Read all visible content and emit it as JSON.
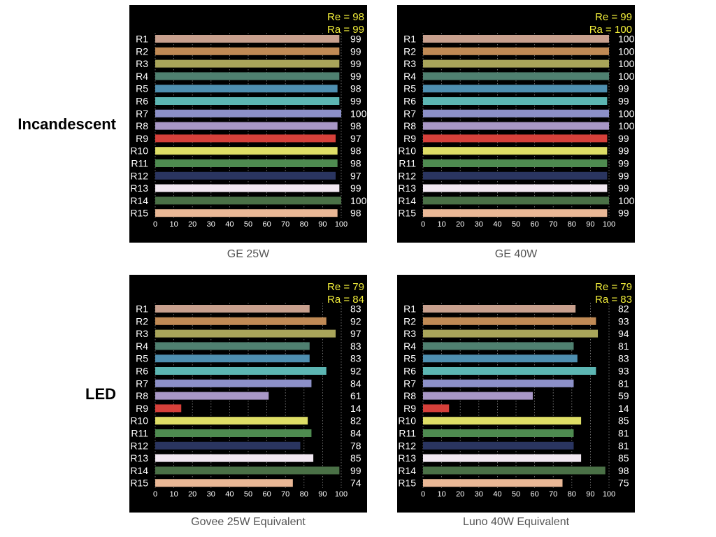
{
  "row_labels": {
    "top": "Incandescent",
    "bottom": "LED"
  },
  "colors": {
    "background": "#000000",
    "grid": "#8a8a8a",
    "label_text": "#ffffff",
    "summary_text": "#f2ee3a",
    "caption_text": "#555555",
    "sample_colors": [
      "#c8a08e",
      "#c08a55",
      "#a9a55a",
      "#4f8070",
      "#4e8fb0",
      "#5cb6b3",
      "#8c90c8",
      "#a897c6",
      "#d6403a",
      "#dede66",
      "#4e8b50",
      "#2a3560",
      "#f2e8f2",
      "#4a7046",
      "#eab896"
    ]
  },
  "chart_data": [
    {
      "type": "bar",
      "orientation": "horizontal",
      "title": "GE 25W",
      "categories": [
        "R1",
        "R2",
        "R3",
        "R4",
        "R5",
        "R6",
        "R7",
        "R8",
        "R9",
        "R10",
        "R11",
        "R12",
        "R13",
        "R14",
        "R15"
      ],
      "values": [
        99,
        99,
        99,
        99,
        98,
        99,
        100,
        98,
        97,
        98,
        98,
        97,
        99,
        100,
        98
      ],
      "value_labels": [
        "99",
        "99",
        "99",
        "99",
        "98",
        "99",
        "100",
        "98",
        "97",
        "98",
        "98",
        "97",
        "99",
        "100",
        "98"
      ],
      "re": "Re = 98",
      "ra": "Ra = 99",
      "xlim": [
        0,
        100
      ],
      "xticks": [
        "0",
        "10",
        "20",
        "30",
        "40",
        "50",
        "60",
        "70",
        "80",
        "90",
        "100"
      ],
      "grid": true
    },
    {
      "type": "bar",
      "orientation": "horizontal",
      "title": "GE 40W",
      "categories": [
        "R1",
        "R2",
        "R3",
        "R4",
        "R5",
        "R6",
        "R7",
        "R8",
        "R9",
        "R10",
        "R11",
        "R12",
        "R13",
        "R14",
        "R15"
      ],
      "values": [
        100,
        100,
        100,
        100,
        99,
        99,
        100,
        100,
        99,
        99,
        99,
        99,
        99,
        100,
        99
      ],
      "value_labels": [
        "100",
        "100",
        "100",
        "100",
        "99",
        "99",
        "100",
        "100",
        "99",
        "99",
        "99",
        "99",
        "99",
        "100",
        "99"
      ],
      "re": "Re = 99",
      "ra": "Ra = 100",
      "xlim": [
        0,
        100
      ],
      "xticks": [
        "0",
        "10",
        "20",
        "30",
        "40",
        "50",
        "60",
        "70",
        "80",
        "90",
        "100"
      ],
      "grid": true
    },
    {
      "type": "bar",
      "orientation": "horizontal",
      "title": "Govee 25W Equivalent",
      "categories": [
        "R1",
        "R2",
        "R3",
        "R4",
        "R5",
        "R6",
        "R7",
        "R8",
        "R9",
        "R10",
        "R11",
        "R12",
        "R13",
        "R14",
        "R15"
      ],
      "values": [
        83,
        92,
        97,
        83,
        83,
        92,
        84,
        61,
        14,
        82,
        84,
        78,
        85,
        99,
        74
      ],
      "value_labels": [
        "83",
        "92",
        "97",
        "83",
        "83",
        "92",
        "84",
        "61",
        "14",
        "82",
        "84",
        "78",
        "85",
        "99",
        "74"
      ],
      "re": "Re = 79",
      "ra": "Ra = 84",
      "xlim": [
        0,
        100
      ],
      "xticks": [
        "0",
        "10",
        "20",
        "30",
        "40",
        "50",
        "60",
        "70",
        "80",
        "90",
        "100"
      ],
      "grid": true
    },
    {
      "type": "bar",
      "orientation": "horizontal",
      "title": "Luno 40W Equivalent",
      "categories": [
        "R1",
        "R2",
        "R3",
        "R4",
        "R5",
        "R6",
        "R7",
        "R8",
        "R9",
        "R10",
        "R11",
        "R12",
        "R13",
        "R14",
        "R15"
      ],
      "values": [
        82,
        93,
        94,
        81,
        83,
        93,
        81,
        59,
        14,
        85,
        81,
        81,
        85,
        98,
        75
      ],
      "value_labels": [
        "82",
        "93",
        "94",
        "81",
        "83",
        "93",
        "81",
        "59",
        "14",
        "85",
        "81",
        "81",
        "85",
        "98",
        "75"
      ],
      "re": "Re = 79",
      "ra": "Ra = 83",
      "xlim": [
        0,
        100
      ],
      "xticks": [
        "0",
        "10",
        "20",
        "30",
        "40",
        "50",
        "60",
        "70",
        "80",
        "90",
        "100"
      ],
      "grid": true
    }
  ]
}
